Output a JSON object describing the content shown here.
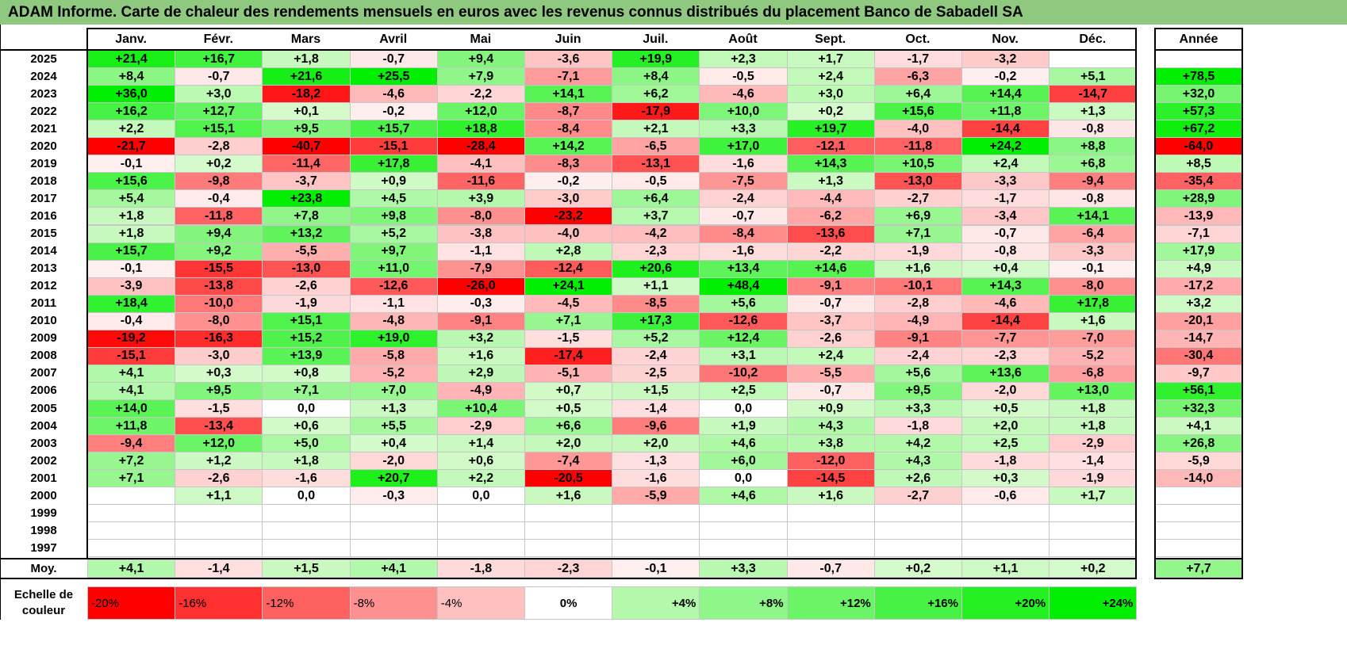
{
  "title": "ADAM Informe. Carte de chaleur des rendements mensuels en euros avec les revenus connus distribués du placement Banco de Sabadell SA",
  "chart_data": {
    "type": "heatmap",
    "title": "ADAM Informe. Carte de chaleur des rendements mensuels en euros avec les revenus connus distribués du placement Banco de Sabadell SA",
    "months": [
      "Janv.",
      "Févr.",
      "Mars",
      "Avril",
      "Mai",
      "Juin",
      "Juil.",
      "Août",
      "Sept.",
      "Oct.",
      "Nov.",
      "Déc."
    ],
    "year_header": "Année",
    "rows": [
      {
        "year": "2025",
        "values": [
          "+21,4",
          "+16,7",
          "+1,8",
          "-0,7",
          "+9,4",
          "-3,6",
          "+19,9",
          "+2,3",
          "+1,7",
          "-1,7",
          "-3,2",
          ""
        ],
        "annual": ""
      },
      {
        "year": "2024",
        "values": [
          "+8,4",
          "-0,7",
          "+21,6",
          "+25,5",
          "+7,9",
          "-7,1",
          "+8,4",
          "-0,5",
          "+2,4",
          "-6,3",
          "-0,2",
          "+5,1"
        ],
        "annual": "+78,5"
      },
      {
        "year": "2023",
        "values": [
          "+36,0",
          "+3,0",
          "-18,2",
          "-4,6",
          "-2,2",
          "+14,1",
          "+6,2",
          "-4,6",
          "+3,0",
          "+6,4",
          "+14,4",
          "-14,7"
        ],
        "annual": "+32,0"
      },
      {
        "year": "2022",
        "values": [
          "+16,2",
          "+12,7",
          "+0,1",
          "-0,2",
          "+12,0",
          "-8,7",
          "-17,9",
          "+10,0",
          "+0,2",
          "+15,6",
          "+11,8",
          "+1,3"
        ],
        "annual": "+57,3"
      },
      {
        "year": "2021",
        "values": [
          "+2,2",
          "+15,1",
          "+9,5",
          "+15,7",
          "+18,8",
          "-8,4",
          "+2,1",
          "+3,3",
          "+19,7",
          "-4,0",
          "-14,4",
          "-0,8"
        ],
        "annual": "+67,2"
      },
      {
        "year": "2020",
        "values": [
          "-21,7",
          "-2,8",
          "-40,7",
          "-15,1",
          "-28,4",
          "+14,2",
          "-6,5",
          "+17,0",
          "-12,1",
          "-11,8",
          "+24,2",
          "+8,8"
        ],
        "annual": "-64,0"
      },
      {
        "year": "2019",
        "values": [
          "-0,1",
          "+0,2",
          "-11,4",
          "+17,8",
          "-4,1",
          "-8,3",
          "-13,1",
          "-1,6",
          "+14,3",
          "+10,5",
          "+2,4",
          "+6,8"
        ],
        "annual": "+8,5"
      },
      {
        "year": "2018",
        "values": [
          "+15,6",
          "-9,8",
          "-3,7",
          "+0,9",
          "-11,6",
          "-0,2",
          "-0,5",
          "-7,5",
          "+1,3",
          "-13,0",
          "-3,3",
          "-9,4"
        ],
        "annual": "-35,4"
      },
      {
        "year": "2017",
        "values": [
          "+5,4",
          "-0,4",
          "+23,8",
          "+4,5",
          "+3,9",
          "-3,0",
          "+6,4",
          "-2,4",
          "-4,4",
          "-2,7",
          "-1,7",
          "-0,8"
        ],
        "annual": "+28,9"
      },
      {
        "year": "2016",
        "values": [
          "+1,8",
          "-11,8",
          "+7,8",
          "+9,8",
          "-8,0",
          "-23,2",
          "+3,7",
          "-0,7",
          "-6,2",
          "+6,9",
          "-3,4",
          "+14,1"
        ],
        "annual": "-13,9"
      },
      {
        "year": "2015",
        "values": [
          "+1,8",
          "+9,4",
          "+13,2",
          "+5,2",
          "-3,8",
          "-4,0",
          "-4,2",
          "-8,4",
          "-13,6",
          "+7,1",
          "-0,7",
          "-6,4"
        ],
        "annual": "-7,1"
      },
      {
        "year": "2014",
        "values": [
          "+15,7",
          "+9,2",
          "-5,5",
          "+9,7",
          "-1,1",
          "+2,8",
          "-2,3",
          "-1,6",
          "-2,2",
          "-1,9",
          "-0,8",
          "-3,3"
        ],
        "annual": "+17,9"
      },
      {
        "year": "2013",
        "values": [
          "-0,1",
          "-15,5",
          "-13,0",
          "+11,0",
          "-7,9",
          "-12,4",
          "+20,6",
          "+13,4",
          "+14,6",
          "+1,6",
          "+0,4",
          "-0,1"
        ],
        "annual": "+4,9"
      },
      {
        "year": "2012",
        "values": [
          "-3,9",
          "-13,8",
          "-2,6",
          "-12,6",
          "-26,0",
          "+24,1",
          "+1,1",
          "+48,4",
          "-9,1",
          "-10,1",
          "+14,3",
          "-8,0"
        ],
        "annual": "-17,2"
      },
      {
        "year": "2011",
        "values": [
          "+18,4",
          "-10,0",
          "-1,9",
          "-1,1",
          "-0,3",
          "-4,5",
          "-8,5",
          "+5,6",
          "-0,7",
          "-2,8",
          "-4,6",
          "+17,8"
        ],
        "annual": "+3,2"
      },
      {
        "year": "2010",
        "values": [
          "-0,4",
          "-8,0",
          "+15,1",
          "-4,8",
          "-9,1",
          "+7,1",
          "+17,3",
          "-12,6",
          "-3,7",
          "-4,9",
          "-14,4",
          "+1,6"
        ],
        "annual": "-20,1"
      },
      {
        "year": "2009",
        "values": [
          "-19,2",
          "-16,3",
          "+15,2",
          "+19,0",
          "+3,2",
          "-1,5",
          "+5,2",
          "+12,4",
          "-2,6",
          "-9,1",
          "-7,7",
          "-7,0"
        ],
        "annual": "-14,7"
      },
      {
        "year": "2008",
        "values": [
          "-15,1",
          "-3,0",
          "+13,9",
          "-5,8",
          "+1,6",
          "-17,4",
          "-2,4",
          "+3,1",
          "+2,4",
          "-2,4",
          "-2,3",
          "-5,2"
        ],
        "annual": "-30,4"
      },
      {
        "year": "2007",
        "values": [
          "+4,1",
          "+0,3",
          "+0,8",
          "-5,2",
          "+2,9",
          "-5,1",
          "-2,5",
          "-10,2",
          "-5,5",
          "+5,6",
          "+13,6",
          "-6,8"
        ],
        "annual": "-9,7"
      },
      {
        "year": "2006",
        "values": [
          "+4,1",
          "+9,5",
          "+7,1",
          "+7,0",
          "-4,9",
          "+0,7",
          "+1,5",
          "+2,5",
          "-0,7",
          "+9,5",
          "-2,0",
          "+13,0"
        ],
        "annual": "+56,1"
      },
      {
        "year": "2005",
        "values": [
          "+14,0",
          "-1,5",
          "0,0",
          "+1,3",
          "+10,4",
          "+0,5",
          "-1,4",
          "0,0",
          "+0,9",
          "+3,3",
          "+0,5",
          "+1,8"
        ],
        "annual": "+32,3"
      },
      {
        "year": "2004",
        "values": [
          "+11,8",
          "-13,4",
          "+0,6",
          "+5,5",
          "-2,9",
          "+6,6",
          "-9,6",
          "+1,9",
          "+4,3",
          "-1,8",
          "+2,0",
          "+1,8"
        ],
        "annual": "+4,1"
      },
      {
        "year": "2003",
        "values": [
          "-9,4",
          "+12,0",
          "+5,0",
          "+0,4",
          "+1,4",
          "+2,0",
          "+2,0",
          "+4,6",
          "+3,8",
          "+4,2",
          "+2,5",
          "-2,9"
        ],
        "annual": "+26,8"
      },
      {
        "year": "2002",
        "values": [
          "+7,2",
          "+1,2",
          "+1,8",
          "-2,0",
          "+0,6",
          "-7,4",
          "-1,3",
          "+6,0",
          "-12,0",
          "+4,3",
          "-1,8",
          "-1,4"
        ],
        "annual": "-5,9"
      },
      {
        "year": "2001",
        "values": [
          "+7,1",
          "-2,6",
          "-1,6",
          "+20,7",
          "+2,2",
          "-20,5",
          "-1,6",
          "0,0",
          "-14,5",
          "+2,6",
          "+0,3",
          "-1,9"
        ],
        "annual": "-14,0"
      },
      {
        "year": "2000",
        "values": [
          "",
          "+1,1",
          "0,0",
          "-0,3",
          "0,0",
          "+1,6",
          "-5,9",
          "+4,6",
          "+1,6",
          "-2,7",
          "-0,6",
          "+1,7"
        ],
        "annual": ""
      },
      {
        "year": "1999",
        "values": [
          "",
          "",
          "",
          "",
          "",
          "",
          "",
          "",
          "",
          "",
          "",
          ""
        ],
        "annual": ""
      },
      {
        "year": "1998",
        "values": [
          "",
          "",
          "",
          "",
          "",
          "",
          "",
          "",
          "",
          "",
          "",
          ""
        ],
        "annual": ""
      },
      {
        "year": "1997",
        "values": [
          "",
          "",
          "",
          "",
          "",
          "",
          "",
          "",
          "",
          "",
          "",
          ""
        ],
        "annual": ""
      }
    ],
    "average": {
      "label": "Moy.",
      "values": [
        "+4,1",
        "-1,4",
        "+1,5",
        "+4,1",
        "-1,8",
        "-2,3",
        "-0,1",
        "+3,3",
        "-0,7",
        "+0,2",
        "+1,1",
        "+0,2"
      ],
      "annual": "+7,7"
    },
    "scale": {
      "label_line1": "Echelle de",
      "label_line2": "couleur",
      "steps": [
        "-20%",
        "-16%",
        "-12%",
        "-8%",
        "-4%",
        "0%",
        "+4%",
        "+8%",
        "+12%",
        "+16%",
        "+20%",
        "+24%"
      ]
    }
  },
  "colors": {
    "title_bg": "#8fc87f",
    "negative_max": "#ff0000",
    "neutral": "#ffffff",
    "positive_max": "#00ee00"
  }
}
